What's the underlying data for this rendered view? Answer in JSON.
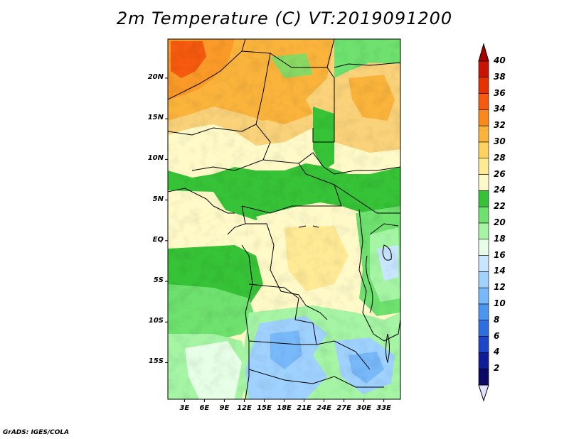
{
  "title": "2m Temperature (C) VT:2019091200",
  "credit": "GrADS: IGES/COLA",
  "map": {
    "lat_labels": [
      {
        "lat": 20,
        "label": "20N"
      },
      {
        "lat": 15,
        "label": "15N"
      },
      {
        "lat": 10,
        "label": "10N"
      },
      {
        "lat": 5,
        "label": "5N"
      },
      {
        "lat": 0,
        "label": "EQ"
      },
      {
        "lat": -5,
        "label": "5S"
      },
      {
        "lat": -10,
        "label": "10S"
      },
      {
        "lat": -15,
        "label": "15S"
      }
    ],
    "lon_labels": [
      {
        "lon": 3,
        "label": "3E"
      },
      {
        "lon": 6,
        "label": "6E"
      },
      {
        "lon": 9,
        "label": "9E"
      },
      {
        "lon": 12,
        "label": "12E"
      },
      {
        "lon": 15,
        "label": "15E"
      },
      {
        "lon": 18,
        "label": "18E"
      },
      {
        "lon": 21,
        "label": "21E"
      },
      {
        "lon": 24,
        "label": "24E"
      },
      {
        "lon": 27,
        "label": "27E"
      },
      {
        "lon": 30,
        "label": "30E"
      },
      {
        "lon": 33,
        "label": "33E"
      }
    ],
    "lon_range": [
      0.5,
      35.5
    ],
    "lat_range": [
      -19.5,
      24.8
    ]
  },
  "colorbar": {
    "levels": [
      "40",
      "38",
      "36",
      "34",
      "32",
      "30",
      "28",
      "26",
      "24",
      "22",
      "20",
      "18",
      "16",
      "14",
      "12",
      "10",
      "8",
      "6",
      "4",
      "2"
    ],
    "colors": [
      "#a80000",
      "#c81400",
      "#e63200",
      "#f55a0f",
      "#fa8719",
      "#fab43c",
      "#ffd25f",
      "#ffeb96",
      "#fffac8",
      "#37c337",
      "#6ee16e",
      "#a5f5a5",
      "#e6ffe6",
      "#c8e6ff",
      "#a0d2ff",
      "#78b9fa",
      "#4b96f0",
      "#2d6ee1",
      "#1e46c8",
      "#0f1e96",
      "#0a0a64",
      "#e1e1ff"
    ]
  }
}
